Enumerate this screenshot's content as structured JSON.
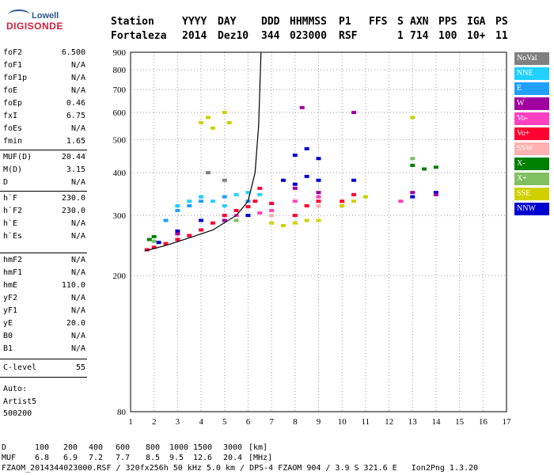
{
  "logo": {
    "top": "Lowell",
    "bottom": "DIGISONDE"
  },
  "header": {
    "row1": [
      "Station",
      "YYYY",
      "DAY",
      "DDD",
      "HHMMSS",
      "P1",
      "FFS",
      "S",
      "AXN",
      "PPS",
      "IGA",
      "PS"
    ],
    "row2": [
      "Fortaleza",
      "2014",
      "Dez10",
      "344",
      "023000",
      "RSF",
      "1",
      "714",
      "100",
      "10+",
      "11"
    ]
  },
  "parameters": {
    "group1": [
      {
        "k": "foF2",
        "v": "6.500"
      },
      {
        "k": "foF1",
        "v": "N/A"
      },
      {
        "k": "foF1p",
        "v": "N/A"
      },
      {
        "k": "foE",
        "v": "N/A"
      },
      {
        "k": "foEp",
        "v": "0.46"
      },
      {
        "k": "fxI",
        "v": "6.75"
      },
      {
        "k": "foEs",
        "v": "N/A"
      },
      {
        "k": "fmin",
        "v": "1.65"
      }
    ],
    "group2": [
      {
        "k": "MUF(D)",
        "v": "20.44"
      },
      {
        "k": "M(D)",
        "v": "3.15"
      },
      {
        "k": "D",
        "v": "N/A"
      }
    ],
    "group3": [
      {
        "k": "h`F",
        "v": "230.0"
      },
      {
        "k": "h`F2",
        "v": "230.0"
      },
      {
        "k": "h`E",
        "v": "N/A"
      },
      {
        "k": "h`Es",
        "v": "N/A"
      }
    ],
    "group4": [
      {
        "k": "hmF2",
        "v": "N/A"
      },
      {
        "k": "hmF1",
        "v": "N/A"
      },
      {
        "k": "hmE",
        "v": "110.0"
      },
      {
        "k": "yF2",
        "v": "N/A"
      },
      {
        "k": "yF1",
        "v": "N/A"
      },
      {
        "k": "yE",
        "v": "20.0"
      },
      {
        "k": "B0",
        "v": "N/A"
      },
      {
        "k": "B1",
        "v": "N/A"
      }
    ],
    "group5": [
      {
        "k": "C-level",
        "v": "55"
      }
    ]
  },
  "footer_left": {
    "line1": "Auto:",
    "line2": "Artist5",
    "line3": "500200"
  },
  "legend": [
    {
      "label": "NoVal",
      "color": "#808080"
    },
    {
      "label": "NNE",
      "color": "#20d0ff"
    },
    {
      "label": "E",
      "color": "#20a0ff"
    },
    {
      "label": "W",
      "color": "#a000a0"
    },
    {
      "label": "Vo-",
      "color": "#ff40c0"
    },
    {
      "label": "Vo+",
      "color": "#ff0030"
    },
    {
      "label": "SSW",
      "color": "#ffb0b0"
    },
    {
      "label": "X-",
      "color": "#008000"
    },
    {
      "label": "X+",
      "color": "#80c060"
    },
    {
      "label": "SSE",
      "color": "#d0d000"
    },
    {
      "label": "NNW",
      "color": "#0000d0"
    }
  ],
  "bottom": {
    "d_label": "D",
    "d_values": [
      "100",
      "200",
      "400",
      "600",
      "800",
      "1000",
      "1500",
      "3000",
      "[km]"
    ],
    "muf_label": "MUF",
    "muf_values": [
      "6.8",
      "6.9",
      "7.2",
      "7.7",
      "8.5",
      "9.5",
      "12.6",
      "20.4",
      "[MHz]"
    ],
    "info": "FZAOM_2014344023000.RSF / 320fx256h 50 kHz 5.0 km / DPS-4 FZAOM 904 / 3.9 S 321.6 E   Ion2Png 1.3.20"
  },
  "chart_data": {
    "type": "scatter",
    "title": "",
    "xlabel": "",
    "ylabel": "",
    "xlim": [
      1,
      17
    ],
    "ylim": [
      80,
      900
    ],
    "y_scale": "log",
    "x_ticks": [
      1,
      2,
      3,
      4,
      5,
      6,
      7,
      8,
      9,
      10,
      11,
      12,
      13,
      14,
      15,
      16,
      17
    ],
    "y_ticks": [
      80,
      200,
      300,
      400,
      500,
      600,
      700,
      800,
      900
    ],
    "grid": true,
    "legend_position": "right",
    "series": [
      {
        "name": "Vo+",
        "points": [
          [
            1.7,
            238
          ],
          [
            2.0,
            242
          ],
          [
            2.5,
            248
          ],
          [
            3.0,
            255
          ],
          [
            3.5,
            262
          ],
          [
            4.0,
            272
          ],
          [
            4.5,
            285
          ],
          [
            5.0,
            300
          ],
          [
            5.5,
            310
          ],
          [
            6.0,
            318
          ],
          [
            6.3,
            330
          ],
          [
            6.5,
            360
          ],
          [
            7.0,
            325
          ],
          [
            8.0,
            300
          ],
          [
            8.5,
            320
          ],
          [
            9.0,
            330
          ],
          [
            10.0,
            330
          ],
          [
            10.5,
            345
          ]
        ]
      },
      {
        "name": "SSE",
        "points": [
          [
            4.0,
            560
          ],
          [
            4.3,
            580
          ],
          [
            4.5,
            540
          ],
          [
            5.0,
            600
          ],
          [
            5.2,
            560
          ],
          [
            7.0,
            285
          ],
          [
            7.5,
            280
          ],
          [
            8.0,
            285
          ],
          [
            8.5,
            290
          ],
          [
            9.0,
            290
          ],
          [
            10.0,
            320
          ],
          [
            10.5,
            330
          ],
          [
            11.0,
            340
          ],
          [
            13.0,
            580
          ]
        ]
      },
      {
        "name": "NNE",
        "points": [
          [
            3.0,
            320
          ],
          [
            3.5,
            330
          ],
          [
            4.0,
            340
          ],
          [
            4.5,
            330
          ],
          [
            5.0,
            320
          ],
          [
            5.5,
            345
          ],
          [
            6.0,
            350
          ],
          [
            6.5,
            345
          ]
        ]
      },
      {
        "name": "E",
        "points": [
          [
            2.5,
            290
          ],
          [
            3.0,
            310
          ],
          [
            3.5,
            320
          ],
          [
            4.0,
            330
          ],
          [
            5.0,
            340
          ],
          [
            6.0,
            330
          ]
        ]
      },
      {
        "name": "NNW",
        "points": [
          [
            2.2,
            250
          ],
          [
            3.0,
            270
          ],
          [
            4.0,
            290
          ],
          [
            6.0,
            300
          ],
          [
            7.5,
            380
          ],
          [
            8.0,
            370
          ],
          [
            8.5,
            390
          ],
          [
            9.0,
            380
          ],
          [
            8.0,
            450
          ],
          [
            8.5,
            470
          ],
          [
            9.0,
            440
          ],
          [
            10.5,
            380
          ],
          [
            13.0,
            340
          ],
          [
            14.0,
            350
          ]
        ]
      },
      {
        "name": "W",
        "points": [
          [
            3.0,
            265
          ],
          [
            5.0,
            290
          ],
          [
            8.0,
            360
          ],
          [
            9.0,
            350
          ],
          [
            8.3,
            620
          ],
          [
            10.5,
            600
          ],
          [
            13.0,
            350
          ],
          [
            14.0,
            345
          ]
        ]
      },
      {
        "name": "Vo-",
        "points": [
          [
            5.5,
            300
          ],
          [
            6.5,
            305
          ],
          [
            7.0,
            310
          ],
          [
            8.0,
            330
          ],
          [
            9.0,
            340
          ],
          [
            12.5,
            330
          ]
        ]
      },
      {
        "name": "X-",
        "points": [
          [
            1.8,
            255
          ],
          [
            2.0,
            260
          ],
          [
            13.0,
            420
          ],
          [
            13.5,
            410
          ],
          [
            14.0,
            415
          ]
        ]
      },
      {
        "name": "X+",
        "points": [
          [
            2.0,
            252
          ],
          [
            5.5,
            290
          ],
          [
            13.0,
            440
          ]
        ]
      },
      {
        "name": "SSW",
        "points": [
          [
            7.0,
            300
          ],
          [
            9.0,
            320
          ]
        ]
      },
      {
        "name": "NoVal",
        "points": [
          [
            4.3,
            400
          ],
          [
            5.0,
            380
          ]
        ]
      }
    ]
  }
}
